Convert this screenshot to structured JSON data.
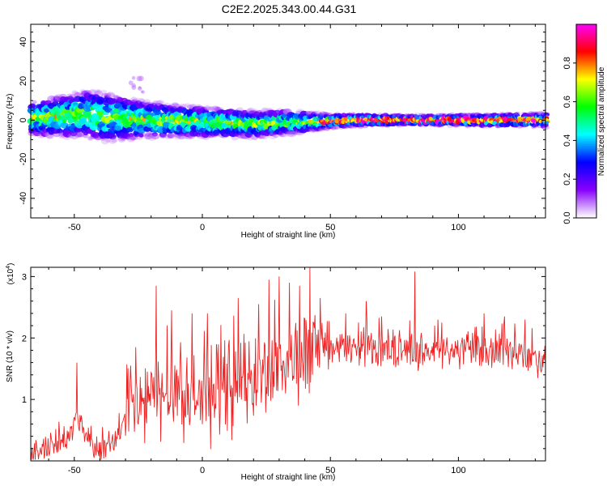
{
  "title": "C2E2.2025.343.00.44.G31",
  "chart_data": [
    {
      "type": "heatmap",
      "xlabel": "Height of straight line (km)",
      "ylabel": "Frequency (Hz)",
      "xlim": [
        -67,
        134
      ],
      "ylim": [
        -50,
        49
      ],
      "xticks": [
        -50,
        0,
        50,
        100
      ],
      "yticks": [
        -40,
        -20,
        0,
        20,
        40
      ],
      "colorbar": {
        "label": "Normalized spectral amplitude",
        "range": [
          0,
          1
        ],
        "ticks": [
          "0.0",
          "0.2",
          "0.4",
          "0.6",
          "0.8"
        ],
        "colormap": [
          "#ffffff",
          "#8800ff",
          "#0000ff",
          "#00ffff",
          "#00ff00",
          "#ffff00",
          "#ff0000",
          "#ff00ff"
        ]
      },
      "band_center": [
        {
          "x": -67,
          "f": 1
        },
        {
          "x": -55,
          "f": 2
        },
        {
          "x": -45,
          "f": 3
        },
        {
          "x": -35,
          "f": 1
        },
        {
          "x": -20,
          "f": 0
        },
        {
          "x": 0,
          "f": -1
        },
        {
          "x": 20,
          "f": -2
        },
        {
          "x": 40,
          "f": -1
        },
        {
          "x": 60,
          "f": 0
        },
        {
          "x": 80,
          "f": 0
        },
        {
          "x": 100,
          "f": 0
        },
        {
          "x": 134,
          "f": 0
        }
      ],
      "band_halfwidth": [
        {
          "x": -67,
          "w": 7
        },
        {
          "x": -40,
          "w": 10
        },
        {
          "x": -20,
          "w": 7
        },
        {
          "x": 0,
          "w": 6
        },
        {
          "x": 30,
          "w": 5
        },
        {
          "x": 50,
          "w": 3
        },
        {
          "x": 80,
          "w": 2
        },
        {
          "x": 134,
          "w": 3
        }
      ]
    },
    {
      "type": "line",
      "xlabel": "Height of straight line (km)",
      "ylabel": "SNR (10 * v/v)",
      "multiplier": "(x10^4)",
      "xlim": [
        -67,
        134
      ],
      "ylim": [
        0,
        3.15
      ],
      "xticks": [
        -50,
        0,
        50,
        100
      ],
      "yticks": [
        1,
        2,
        3
      ],
      "color": "#ee2222",
      "series": [
        {
          "points": [
            {
              "x": -67,
              "y": 0.15
            },
            {
              "x": -62,
              "y": 0.2
            },
            {
              "x": -58,
              "y": 0.25
            },
            {
              "x": -54,
              "y": 0.3
            },
            {
              "x": -51,
              "y": 0.45
            },
            {
              "x": -49,
              "y": 0.8
            },
            {
              "x": -46,
              "y": 0.45
            },
            {
              "x": -42,
              "y": 0.25
            },
            {
              "x": -38,
              "y": 0.2
            },
            {
              "x": -34,
              "y": 0.3
            },
            {
              "x": -30,
              "y": 0.7
            },
            {
              "x": -25,
              "y": 0.9
            },
            {
              "x": -20,
              "y": 1.0
            },
            {
              "x": -15,
              "y": 1.1
            },
            {
              "x": -10,
              "y": 1.2
            },
            {
              "x": -5,
              "y": 1.1
            },
            {
              "x": 0,
              "y": 1.0
            },
            {
              "x": 5,
              "y": 1.1
            },
            {
              "x": 10,
              "y": 1.2
            },
            {
              "x": 15,
              "y": 1.25
            },
            {
              "x": 20,
              "y": 1.3
            },
            {
              "x": 25,
              "y": 1.4
            },
            {
              "x": 30,
              "y": 1.5
            },
            {
              "x": 35,
              "y": 1.6
            },
            {
              "x": 40,
              "y": 1.7
            },
            {
              "x": 45,
              "y": 1.75
            },
            {
              "x": 50,
              "y": 1.8
            },
            {
              "x": 55,
              "y": 1.85
            },
            {
              "x": 60,
              "y": 1.85
            },
            {
              "x": 70,
              "y": 1.85
            },
            {
              "x": 80,
              "y": 1.8
            },
            {
              "x": 90,
              "y": 1.78
            },
            {
              "x": 100,
              "y": 1.8
            },
            {
              "x": 110,
              "y": 1.78
            },
            {
              "x": 120,
              "y": 1.75
            },
            {
              "x": 130,
              "y": 1.7
            },
            {
              "x": 134,
              "y": 1.65
            }
          ],
          "peaks": [
            {
              "x": -49,
              "y": 1.6
            },
            {
              "x": -28,
              "y": 1.55
            },
            {
              "x": -26,
              "y": 1.85
            },
            {
              "x": -18,
              "y": 2.85
            },
            {
              "x": -12,
              "y": 2.45
            },
            {
              "x": -4,
              "y": 2.4
            },
            {
              "x": 2,
              "y": 2.4
            },
            {
              "x": 14,
              "y": 2.65
            },
            {
              "x": 22,
              "y": 2.55
            },
            {
              "x": 26,
              "y": 2.95
            },
            {
              "x": 30,
              "y": 3.0
            },
            {
              "x": 34,
              "y": 2.9
            },
            {
              "x": 38,
              "y": 2.85
            },
            {
              "x": 42,
              "y": 3.15
            },
            {
              "x": 46,
              "y": 2.65
            },
            {
              "x": 56,
              "y": 2.4
            },
            {
              "x": 64,
              "y": 2.6
            },
            {
              "x": 70,
              "y": 2.35
            },
            {
              "x": 83,
              "y": 3.08
            },
            {
              "x": 92,
              "y": 2.3
            },
            {
              "x": 110,
              "y": 2.4
            },
            {
              "x": 118,
              "y": 2.35
            },
            {
              "x": 126,
              "y": 2.3
            }
          ]
        }
      ]
    }
  ]
}
